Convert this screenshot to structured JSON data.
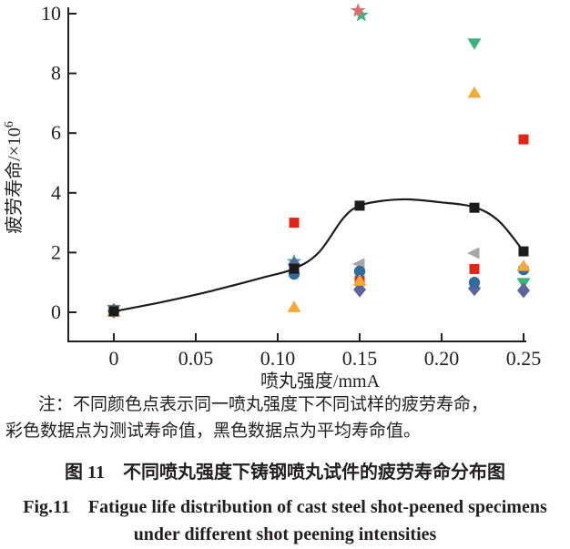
{
  "figure": {
    "note_line1": "注：不同颜色点表示同一喷丸强度下不同试样的疲劳寿命，",
    "note_line2": "彩色数据点为测试寿命值，黑色数据点为平均寿命值。",
    "caption_cn": "图 11　不同喷丸强度下铸钢喷丸试件的疲劳寿命分布图",
    "caption_en_line1": "Fig.11　Fatigue life distribution of cast steel shot-peened specimens",
    "caption_en_line2": "under different shot peening intensities"
  },
  "chart_data": {
    "type": "scatter",
    "title": "",
    "xlabel": "喷丸强度/mmA",
    "ylabel": "疲劳寿命/×10⁶",
    "ylabel_base": "疲劳寿命/×10",
    "ylabel_exp": "6",
    "xlim": [
      -0.028,
      0.252
    ],
    "ylim": [
      -1.0,
      10.2
    ],
    "xticks": [
      0,
      0.05,
      0.1,
      0.15,
      0.2,
      0.25
    ],
    "xtick_labels": [
      "0",
      "0.05",
      "0.10",
      "0.15",
      "0.20",
      "0.25"
    ],
    "yticks": [
      0,
      2,
      4,
      6,
      8,
      10
    ],
    "ytick_labels": [
      "0",
      "2",
      "4",
      "6",
      "8",
      "10"
    ],
    "grid": false,
    "legend": "none (colors explained in note text)",
    "axis_color": "#231f20",
    "series": [
      {
        "name": "specimen-gray",
        "marker": "triangle-left",
        "color": "#a7a7a9",
        "points": [
          [
            0.15,
            1.62
          ],
          [
            0.22,
            1.98
          ]
        ]
      },
      {
        "name": "specimen-green-star",
        "marker": "star",
        "color": "#3bb27d",
        "points": [
          [
            0.11,
            1.7
          ],
          [
            0.151,
            9.95
          ]
        ]
      },
      {
        "name": "specimen-green",
        "marker": "triangle-down",
        "color": "#3bb27d",
        "points": [
          [
            0,
            0.08
          ],
          [
            0.22,
            9.0
          ],
          [
            0.25,
            0.98
          ]
        ]
      },
      {
        "name": "specimen-red",
        "marker": "square",
        "color": "#e02717",
        "points": [
          [
            0,
            0.06
          ],
          [
            0.11,
            3.0
          ],
          [
            0.15,
            1.05
          ],
          [
            0.22,
            1.45
          ],
          [
            0.25,
            5.79
          ]
        ]
      },
      {
        "name": "specimen-purple",
        "marker": "diamond",
        "color": "#5c659b",
        "points": [
          [
            0,
            0.05
          ],
          [
            0.11,
            1.6
          ],
          [
            0.15,
            0.76
          ],
          [
            0.22,
            0.8
          ],
          [
            0.25,
            0.73
          ]
        ]
      },
      {
        "name": "specimen-blue",
        "marker": "circle",
        "color": "#336a9e",
        "points": [
          [
            0,
            0.04
          ],
          [
            0.11,
            1.28
          ],
          [
            0.15,
            1.37
          ],
          [
            0.22,
            1.0
          ],
          [
            0.25,
            1.43
          ]
        ]
      },
      {
        "name": "specimen-orange",
        "marker": "triangle-up",
        "color": "#f4a938",
        "points": [
          [
            0,
            0.02
          ],
          [
            0.11,
            0.17
          ],
          [
            0.15,
            1.06
          ],
          [
            0.22,
            7.35
          ],
          [
            0.25,
            1.55
          ]
        ]
      },
      {
        "name": "specimen-pink-star",
        "marker": "star",
        "color": "#e76a70",
        "points": [
          [
            0.149,
            10.1
          ]
        ]
      }
    ],
    "average_series": {
      "name": "average-life",
      "marker": "square",
      "color": "#1c1c1c",
      "points": [
        [
          0,
          0.03
        ],
        [
          0.11,
          1.46
        ],
        [
          0.15,
          3.57
        ],
        [
          0.22,
          3.5
        ],
        [
          0.25,
          2.04
        ]
      ]
    },
    "trend_curve": [
      [
        0,
        0.03
      ],
      [
        0.03,
        0.35
      ],
      [
        0.06,
        0.72
      ],
      [
        0.09,
        1.15
      ],
      [
        0.11,
        1.46
      ],
      [
        0.125,
        2.0
      ],
      [
        0.14,
        3.15
      ],
      [
        0.15,
        3.57
      ],
      [
        0.165,
        3.74
      ],
      [
        0.18,
        3.78
      ],
      [
        0.2,
        3.68
      ],
      [
        0.22,
        3.52
      ],
      [
        0.235,
        3.05
      ],
      [
        0.25,
        2.04
      ]
    ]
  }
}
